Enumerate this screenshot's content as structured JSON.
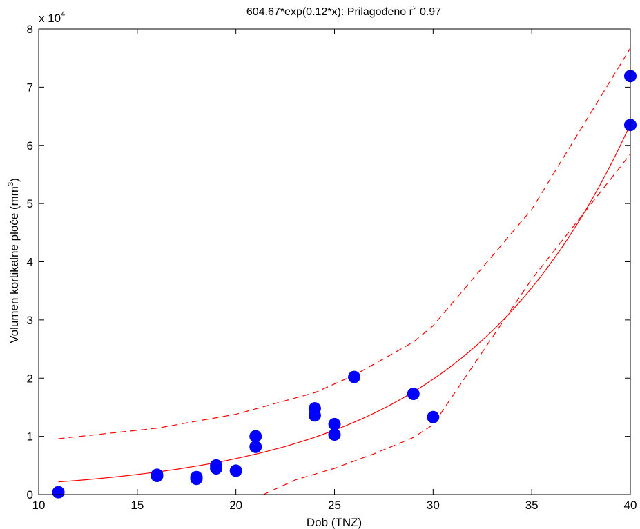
{
  "chart_data": {
    "type": "scatter",
    "title": "604.67*exp(0.12*x): Prilagođeno r",
    "title_superscript": "2",
    "title_suffix": " 0.97",
    "xlabel": "Dob (TNZ)",
    "ylabel": "Volumen kortikalne ploče (mm",
    "ylabel_superscript": "3",
    "ylabel_suffix": ")",
    "y_multiplier": "x 10",
    "y_multiplier_exponent": "4",
    "xlim": [
      10,
      40
    ],
    "ylim": [
      0,
      8
    ],
    "xticks": [
      10,
      15,
      20,
      25,
      30,
      35,
      40
    ],
    "yticks": [
      0,
      1,
      2,
      3,
      4,
      5,
      6,
      7,
      8
    ],
    "grid": false,
    "fit": {
      "a": 604.67,
      "b": 0.12,
      "x_range": [
        11,
        40
      ],
      "color": "#ff0000"
    },
    "confidence_upper": {
      "x": [
        11,
        16,
        20,
        24,
        26,
        29,
        30,
        35,
        40
      ],
      "y": [
        0.96,
        1.14,
        1.38,
        1.75,
        2.05,
        2.62,
        2.9,
        4.9,
        7.67
      ],
      "color": "#ff0000"
    },
    "confidence_lower": {
      "x": [
        21.4,
        23,
        25,
        27,
        29,
        30,
        35,
        40
      ],
      "y": [
        0.0,
        0.25,
        0.45,
        0.7,
        0.98,
        1.2,
        3.7,
        5.85
      ],
      "color": "#ff0000"
    },
    "series": [
      {
        "marker_color": "#0000ff",
        "x": [
          11,
          16,
          16,
          18,
          18,
          19,
          19,
          20,
          21,
          21,
          24,
          24,
          25,
          25,
          26,
          29,
          30,
          40,
          40
        ],
        "y": [
          0.04,
          0.32,
          0.34,
          0.27,
          0.3,
          0.45,
          0.5,
          0.41,
          0.82,
          1.0,
          1.36,
          1.48,
          1.03,
          1.21,
          2.02,
          1.73,
          1.33,
          6.35,
          7.19
        ]
      }
    ]
  }
}
